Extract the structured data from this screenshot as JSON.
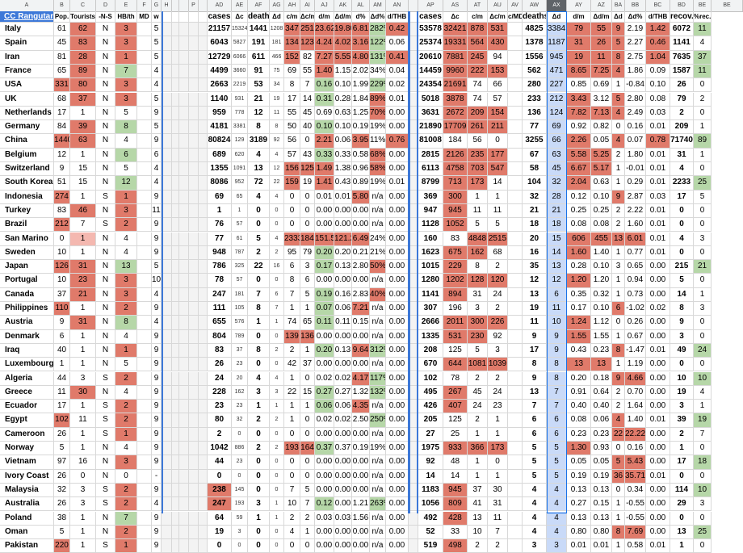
{
  "column_headers": [
    "A",
    "B",
    "C",
    "D",
    "E",
    "F",
    "G",
    "H",
    "",
    "",
    "P",
    "",
    "AD",
    "AE",
    "AF",
    "AG",
    "AH",
    "AI",
    "AJ",
    "AK",
    "AL",
    "AM",
    "AN",
    "",
    "AP",
    "AS",
    "AT",
    "AU",
    "AV",
    "AW",
    "AX",
    "AY",
    "AZ",
    "BA",
    "BB",
    "BC",
    "BD",
    "BE"
  ],
  "selected_column": "AX",
  "title": "CC Rangutan",
  "header_labels": {
    "pop": "Pop.",
    "tourists": "Tourists",
    "ns": "-N-S",
    "hb": "HB/th",
    "md": "MD",
    "w": "w",
    "cases": "cases",
    "dc": "Δc",
    "deaths": "deaths",
    "dd": "Δd",
    "cm": "c/m",
    "dcm": "Δc/m",
    "dm": "d/m",
    "ddm": "Δd/m",
    "dpct": "d%",
    "ddpct": "Δd%",
    "dthb": "d/THB",
    "cases2": "cases",
    "dc2": "Δc",
    "cm2": "c/m",
    "dcm2": "Δc/m",
    "cmd": "c/MD",
    "deaths2": "deaths",
    "dd2": "Δd",
    "dm2": "d/m",
    "ddm2": "Δd/m",
    "dd3": "Δd",
    "ddpct2": "Δd%",
    "dthb2": "d/THB",
    "recov": "recov.",
    "prec": "%rec."
  },
  "rows": [
    [
      "Italy",
      "61",
      "62",
      "N",
      "3",
      "",
      "5",
      "21157",
      "15324",
      "1441",
      "1208",
      "347",
      "251",
      "23.62",
      "19.80",
      "6.81",
      "282%",
      "0.42",
      "53578",
      "32421",
      "878",
      "531",
      "",
      "4825",
      "3384",
      "79",
      "55",
      "9",
      "2.19",
      "1.42",
      "6072",
      "11"
    ],
    [
      "Spain",
      "45",
      "83",
      "N",
      "3",
      "",
      "5",
      "6043",
      "5827",
      "191",
      "181",
      "134",
      "123",
      "4.24",
      "4.02",
      "3.16",
      "122%",
      "0.06",
      "25374",
      "19331",
      "564",
      "430",
      "",
      "1378",
      "1187",
      "31",
      "26",
      "5",
      "2.27",
      "0.46",
      "1141",
      "4"
    ],
    [
      "Iran",
      "81",
      "28",
      "N",
      "1",
      "",
      "5",
      "12729",
      "6066",
      "611",
      "466",
      "152",
      "82",
      "7.27",
      "5.55",
      "4.80",
      "131%",
      "0.41",
      "20610",
      "7881",
      "245",
      "94",
      "",
      "1556",
      "945",
      "19",
      "11",
      "8",
      "2.75",
      "1.04",
      "7635",
      "37"
    ],
    [
      "France",
      "65",
      "89",
      "N",
      "7",
      "",
      "4",
      "4499",
      "3660",
      "91",
      "75",
      "69",
      "55",
      "1.40",
      "1.15",
      "2.02",
      "34%",
      "0.04",
      "14459",
      "9960",
      "222",
      "153",
      "",
      "562",
      "471",
      "8.65",
      "7.25",
      "4",
      "1.86",
      "0.09",
      "1587",
      "11"
    ],
    [
      "USA",
      "331",
      "80",
      "N",
      "3",
      "",
      "4",
      "2663",
      "2219",
      "53",
      "34",
      "8",
      "7",
      "0.16",
      "0.10",
      "1.99",
      "229%",
      "0.02",
      "24354",
      "21691",
      "74",
      "66",
      "",
      "280",
      "227",
      "0.85",
      "0.69",
      "1",
      "-0.84",
      "0.10",
      "26",
      "0"
    ],
    [
      "UK",
      "68",
      "37",
      "N",
      "3",
      "",
      "5",
      "1140",
      "931",
      "21",
      "19",
      "17",
      "14",
      "0.31",
      "0.28",
      "1.84",
      "89%",
      "0.01",
      "5018",
      "3878",
      "74",
      "57",
      "",
      "233",
      "212",
      "3.43",
      "3.12",
      "5",
      "2.80",
      "0.08",
      "79",
      "2"
    ],
    [
      "Netherlands",
      "17",
      "1",
      "N",
      "5",
      "",
      "9",
      "959",
      "778",
      "12",
      "11",
      "55",
      "45",
      "0.69",
      "0.63",
      "1.25",
      "70%",
      "0.00",
      "3631",
      "2672",
      "209",
      "154",
      "",
      "136",
      "124",
      "7.82",
      "7.13",
      "4",
      "2.49",
      "0.03",
      "2",
      "0"
    ],
    [
      "Germany",
      "84",
      "39",
      "N",
      "8",
      "",
      "5",
      "4181",
      "3381",
      "8",
      "8",
      "50",
      "40",
      "0.10",
      "0.10",
      "0.19",
      "19%",
      "0.00",
      "21890",
      "17709",
      "261",
      "211",
      "",
      "77",
      "69",
      "0.92",
      "0.82",
      "0",
      "0.16",
      "0.01",
      "209",
      "1"
    ],
    [
      "China",
      "1440",
      "63",
      "N",
      "4",
      "",
      "9",
      "80824",
      "129",
      "3189",
      "92",
      "56",
      "0",
      "2.21",
      "0.06",
      "3.95",
      "11%",
      "0.76",
      "81008",
      "184",
      "56",
      "0",
      "",
      "3255",
      "66",
      "2.26",
      "0.05",
      "4",
      "0.07",
      "0.78",
      "71740",
      "89"
    ],
    [
      "Belgium",
      "12",
      "1",
      "N",
      "6",
      "",
      "6",
      "689",
      "620",
      "4",
      "4",
      "57",
      "43",
      "0.33",
      "0.33",
      "0.58",
      "68%",
      "0.00",
      "2815",
      "2126",
      "235",
      "177",
      "",
      "67",
      "63",
      "5.58",
      "5.25",
      "2",
      "1.80",
      "0.01",
      "31",
      "1"
    ],
    [
      "Switzerland",
      "9",
      "15",
      "N",
      "5",
      "",
      "4",
      "1355",
      "1091",
      "13",
      "12",
      "156",
      "125",
      "1.49",
      "1.38",
      "0.96",
      "58%",
      "0.00",
      "6113",
      "4758",
      "703",
      "547",
      "",
      "58",
      "45",
      "6.67",
      "5.17",
      "1",
      "-0.01",
      "0.01",
      "4",
      "0"
    ],
    [
      "South Korea",
      "51",
      "15",
      "N",
      "12",
      "",
      "4",
      "8086",
      "952",
      "72",
      "22",
      "159",
      "19",
      "1.41",
      "0.43",
      "0.89",
      "19%",
      "0.01",
      "8799",
      "713",
      "173",
      "14",
      "",
      "104",
      "32",
      "2.04",
      "0.63",
      "1",
      "0.29",
      "0.01",
      "2233",
      "25"
    ],
    [
      "Indonesia",
      "274",
      "1",
      "S",
      "1",
      "",
      "9",
      "69",
      "65",
      "4",
      "4",
      "0",
      "0",
      "0.01",
      "0.01",
      "5.80",
      "n/a",
      "0.00",
      "369",
      "300",
      "1",
      "1",
      "",
      "32",
      "28",
      "0.12",
      "0.10",
      "9",
      "2.87",
      "0.03",
      "17",
      "5"
    ],
    [
      "Turkey",
      "83",
      "46",
      "N",
      "3",
      "",
      "11",
      "1",
      "1",
      "0",
      "0",
      "0",
      "0",
      "0.00",
      "0.00",
      "0.00",
      "n/a",
      "0.00",
      "947",
      "945",
      "11",
      "11",
      "",
      "21",
      "21",
      "0.25",
      "0.25",
      "2",
      "2.22",
      "0.01",
      "0",
      "0"
    ],
    [
      "Brazil",
      "212",
      "7",
      "S",
      "2",
      "",
      "9",
      "76",
      "57",
      "0",
      "0",
      "0",
      "0",
      "0.00",
      "0.00",
      "0.00",
      "n/a",
      "0.00",
      "1128",
      "1052",
      "5",
      "5",
      "",
      "18",
      "18",
      "0.08",
      "0.08",
      "2",
      "1.60",
      "0.01",
      "0",
      "0"
    ],
    [
      "San Marino",
      "0",
      "1",
      "N",
      "4",
      "",
      "9",
      "77",
      "61",
      "5",
      "4",
      "2333",
      "1848",
      "151.5",
      "121.2",
      "6.49",
      "24%",
      "0.00",
      "160",
      "83",
      "4848",
      "2515",
      "",
      "20",
      "15",
      "606",
      "455",
      "13",
      "6.01",
      "0.01",
      "4",
      "3"
    ],
    [
      "Sweden",
      "10",
      "1",
      "N",
      "4",
      "",
      "9",
      "948",
      "787",
      "2",
      "2",
      "95",
      "79",
      "0.20",
      "0.20",
      "0.21",
      "21%",
      "0.00",
      "1623",
      "675",
      "162",
      "68",
      "",
      "16",
      "14",
      "1.60",
      "1.40",
      "1",
      "0.77",
      "0.01",
      "0",
      "0"
    ],
    [
      "Japan",
      "126",
      "31",
      "N",
      "13",
      "",
      "5",
      "786",
      "325",
      "22",
      "16",
      "6",
      "3",
      "0.17",
      "0.13",
      "2.80",
      "50%",
      "0.00",
      "1015",
      "229",
      "8",
      "2",
      "",
      "35",
      "13",
      "0.28",
      "0.10",
      "3",
      "0.65",
      "0.00",
      "215",
      "21"
    ],
    [
      "Portugal",
      "10",
      "23",
      "N",
      "3",
      "",
      "10",
      "78",
      "57",
      "0",
      "0",
      "8",
      "6",
      "0.00",
      "0.00",
      "0.00",
      "n/a",
      "0.00",
      "1280",
      "1202",
      "128",
      "120",
      "",
      "12",
      "12",
      "1.20",
      "1.20",
      "1",
      "0.94",
      "0.00",
      "5",
      "0"
    ],
    [
      "Canada",
      "37",
      "21",
      "N",
      "3",
      "",
      "4",
      "247",
      "181",
      "7",
      "6",
      "7",
      "5",
      "0.19",
      "0.16",
      "2.83",
      "40%",
      "0.00",
      "1141",
      "894",
      "31",
      "24",
      "",
      "13",
      "6",
      "0.35",
      "0.32",
      "1",
      "0.73",
      "0.00",
      "14",
      "1"
    ],
    [
      "Philippines",
      "110",
      "1",
      "N",
      "2",
      "",
      "9",
      "111",
      "105",
      "8",
      "7",
      "1",
      "1",
      "0.07",
      "0.06",
      "7.21",
      "n/a",
      "0.00",
      "307",
      "196",
      "3",
      "2",
      "",
      "19",
      "11",
      "0.17",
      "0.10",
      "6",
      "-1.02",
      "0.02",
      "8",
      "3"
    ],
    [
      "Austria",
      "9",
      "31",
      "N",
      "8",
      "",
      "4",
      "655",
      "576",
      "1",
      "1",
      "74",
      "65",
      "0.11",
      "0.11",
      "0.15",
      "n/a",
      "0.00",
      "2666",
      "2011",
      "300",
      "226",
      "",
      "11",
      "10",
      "1.24",
      "1.12",
      "0",
      "0.26",
      "0.00",
      "9",
      "0"
    ],
    [
      "Denmark",
      "6",
      "1",
      "N",
      "4",
      "",
      "9",
      "804",
      "789",
      "0",
      "0",
      "139",
      "136",
      "0.00",
      "0.00",
      "0.00",
      "n/a",
      "0.00",
      "1335",
      "531",
      "230",
      "92",
      "",
      "9",
      "9",
      "1.55",
      "1.55",
      "1",
      "0.67",
      "0.00",
      "3",
      "0"
    ],
    [
      "Iraq",
      "40",
      "1",
      "N",
      "1",
      "",
      "9",
      "83",
      "37",
      "8",
      "2",
      "2",
      "1",
      "0.20",
      "0.13",
      "9.64",
      "312%",
      "0.00",
      "208",
      "125",
      "5",
      "3",
      "",
      "17",
      "9",
      "0.43",
      "0.23",
      "8",
      "-1.47",
      "0.01",
      "49",
      "24"
    ],
    [
      "Luxembourg",
      "1",
      "1",
      "N",
      "5",
      "",
      "9",
      "26",
      "23",
      "0",
      "0",
      "42",
      "37",
      "0.00",
      "0.00",
      "0.00",
      "n/a",
      "0.00",
      "670",
      "644",
      "1081",
      "1039",
      "",
      "8",
      "8",
      "13",
      "13",
      "1",
      "1.19",
      "0.00",
      "0",
      "0"
    ],
    [
      "Algeria",
      "44",
      "3",
      "S",
      "2",
      "",
      "9",
      "24",
      "20",
      "4",
      "4",
      "1",
      "0",
      "0.02",
      "0.02",
      "4.17",
      "117%",
      "0.00",
      "102",
      "78",
      "2",
      "2",
      "",
      "9",
      "8",
      "0.20",
      "0.18",
      "9",
      "4.66",
      "0.00",
      "10",
      "10"
    ],
    [
      "Greece",
      "11",
      "30",
      "N",
      "4",
      "",
      "9",
      "228",
      "162",
      "3",
      "3",
      "22",
      "15",
      "0.27",
      "0.27",
      "1.32",
      "132%",
      "0.00",
      "495",
      "267",
      "45",
      "24",
      "",
      "13",
      "7",
      "0.91",
      "0.64",
      "2",
      "0.70",
      "0.00",
      "19",
      "4"
    ],
    [
      "Ecuador",
      "17",
      "1",
      "S",
      "2",
      "",
      "9",
      "23",
      "23",
      "1",
      "1",
      "1",
      "1",
      "0.06",
      "0.06",
      "4.35",
      "n/a",
      "0.00",
      "426",
      "407",
      "24",
      "23",
      "",
      "7",
      "7",
      "0.40",
      "0.40",
      "2",
      "1.64",
      "0.00",
      "3",
      "1"
    ],
    [
      "Egypt",
      "102",
      "11",
      "S",
      "2",
      "",
      "9",
      "80",
      "32",
      "2",
      "2",
      "1",
      "0",
      "0.02",
      "0.02",
      "2.50",
      "250%",
      "0.00",
      "205",
      "125",
      "2",
      "1",
      "",
      "6",
      "6",
      "0.08",
      "0.06",
      "4",
      "1.40",
      "0.01",
      "39",
      "19"
    ],
    [
      "Cameroon",
      "26",
      "1",
      "S",
      "1",
      "",
      "9",
      "2",
      "0",
      "0",
      "0",
      "0",
      "0",
      "0.00",
      "0.00",
      "0.00",
      "n/a",
      "0.00",
      "27",
      "25",
      "1",
      "1",
      "",
      "6",
      "6",
      "0.23",
      "0.23",
      "22",
      "22.22",
      "0.00",
      "2",
      "7"
    ],
    [
      "Norway",
      "5",
      "1",
      "N",
      "4",
      "",
      "9",
      "1042",
      "886",
      "2",
      "2",
      "193",
      "164",
      "0.37",
      "0.37",
      "0.19",
      "19%",
      "0.00",
      "1975",
      "933",
      "366",
      "173",
      "",
      "5",
      "5",
      "1.30",
      "0.93",
      "0",
      "0.16",
      "0.00",
      "1",
      "0"
    ],
    [
      "Vietnam",
      "97",
      "16",
      "N",
      "3",
      "",
      "9",
      "44",
      "23",
      "0",
      "0",
      "0",
      "0",
      "0.00",
      "0.00",
      "0.00",
      "n/a",
      "0.00",
      "92",
      "48",
      "1",
      "0",
      "",
      "5",
      "5",
      "0.05",
      "0.05",
      "5",
      "5.43",
      "0.00",
      "17",
      "18"
    ],
    [
      "Ivory Coast",
      "26",
      "0",
      "N",
      "0",
      "",
      "-",
      "0",
      "0",
      "0",
      "0",
      "0",
      "0",
      "0.00",
      "0.00",
      "0.00",
      "n/a",
      "0.00",
      "14",
      "14",
      "1",
      "1",
      "",
      "5",
      "5",
      "0.19",
      "0.19",
      "36",
      "35.71",
      "0.01",
      "0",
      "0"
    ],
    [
      "Malaysia",
      "32",
      "3",
      "S",
      "2",
      "",
      "9",
      "238",
      "145",
      "0",
      "0",
      "7",
      "5",
      "0.00",
      "0.00",
      "0.00",
      "n/a",
      "0.00",
      "1183",
      "945",
      "37",
      "30",
      "",
      "4",
      "4",
      "0.13",
      "0.13",
      "0",
      "0.34",
      "0.00",
      "114",
      "10"
    ],
    [
      "Australia",
      "26",
      "3",
      "S",
      "2",
      "",
      "4",
      "247",
      "193",
      "3",
      "1",
      "10",
      "7",
      "0.12",
      "0.00",
      "1.21",
      "263%",
      "0.00",
      "1056",
      "809",
      "41",
      "31",
      "",
      "4",
      "4",
      "0.27",
      "0.15",
      "1",
      "-0.55",
      "0.00",
      "29",
      "3"
    ],
    [
      "Poland",
      "38",
      "1",
      "N",
      "7",
      "",
      "9",
      "64",
      "59",
      "1",
      "1",
      "2",
      "2",
      "0.03",
      "0.03",
      "1.56",
      "n/a",
      "0.00",
      "492",
      "428",
      "13",
      "11",
      "",
      "4",
      "4",
      "0.13",
      "0.13",
      "1",
      "-0.55",
      "0.00",
      "0",
      "0"
    ],
    [
      "Oman",
      "5",
      "1",
      "N",
      "2",
      "",
      "9",
      "19",
      "3",
      "0",
      "0",
      "4",
      "1",
      "0.00",
      "0.00",
      "0.00",
      "n/a",
      "0.00",
      "52",
      "33",
      "10",
      "7",
      "",
      "4",
      "4",
      "0.80",
      "0.80",
      "8",
      "7.69",
      "0.00",
      "13",
      "25"
    ],
    [
      "Pakistan",
      "220",
      "1",
      "S",
      "1",
      "",
      "9",
      "0",
      "0",
      "0",
      "0",
      "0",
      "0",
      "0.00",
      "0.00",
      "0.00",
      "n/a",
      "0.00",
      "519",
      "498",
      "2",
      "2",
      "",
      "3",
      "3",
      "0.01",
      "0.01",
      "1",
      "0.58",
      "0.01",
      "1",
      "0"
    ]
  ],
  "colors": {
    "red": "#e07a6a",
    "red_light": "#f4b8b0",
    "green": "#b6d7a8",
    "title_bg": "#3c78d8",
    "selection": "#c9daf8",
    "header_bg": "#f1f3f4"
  }
}
